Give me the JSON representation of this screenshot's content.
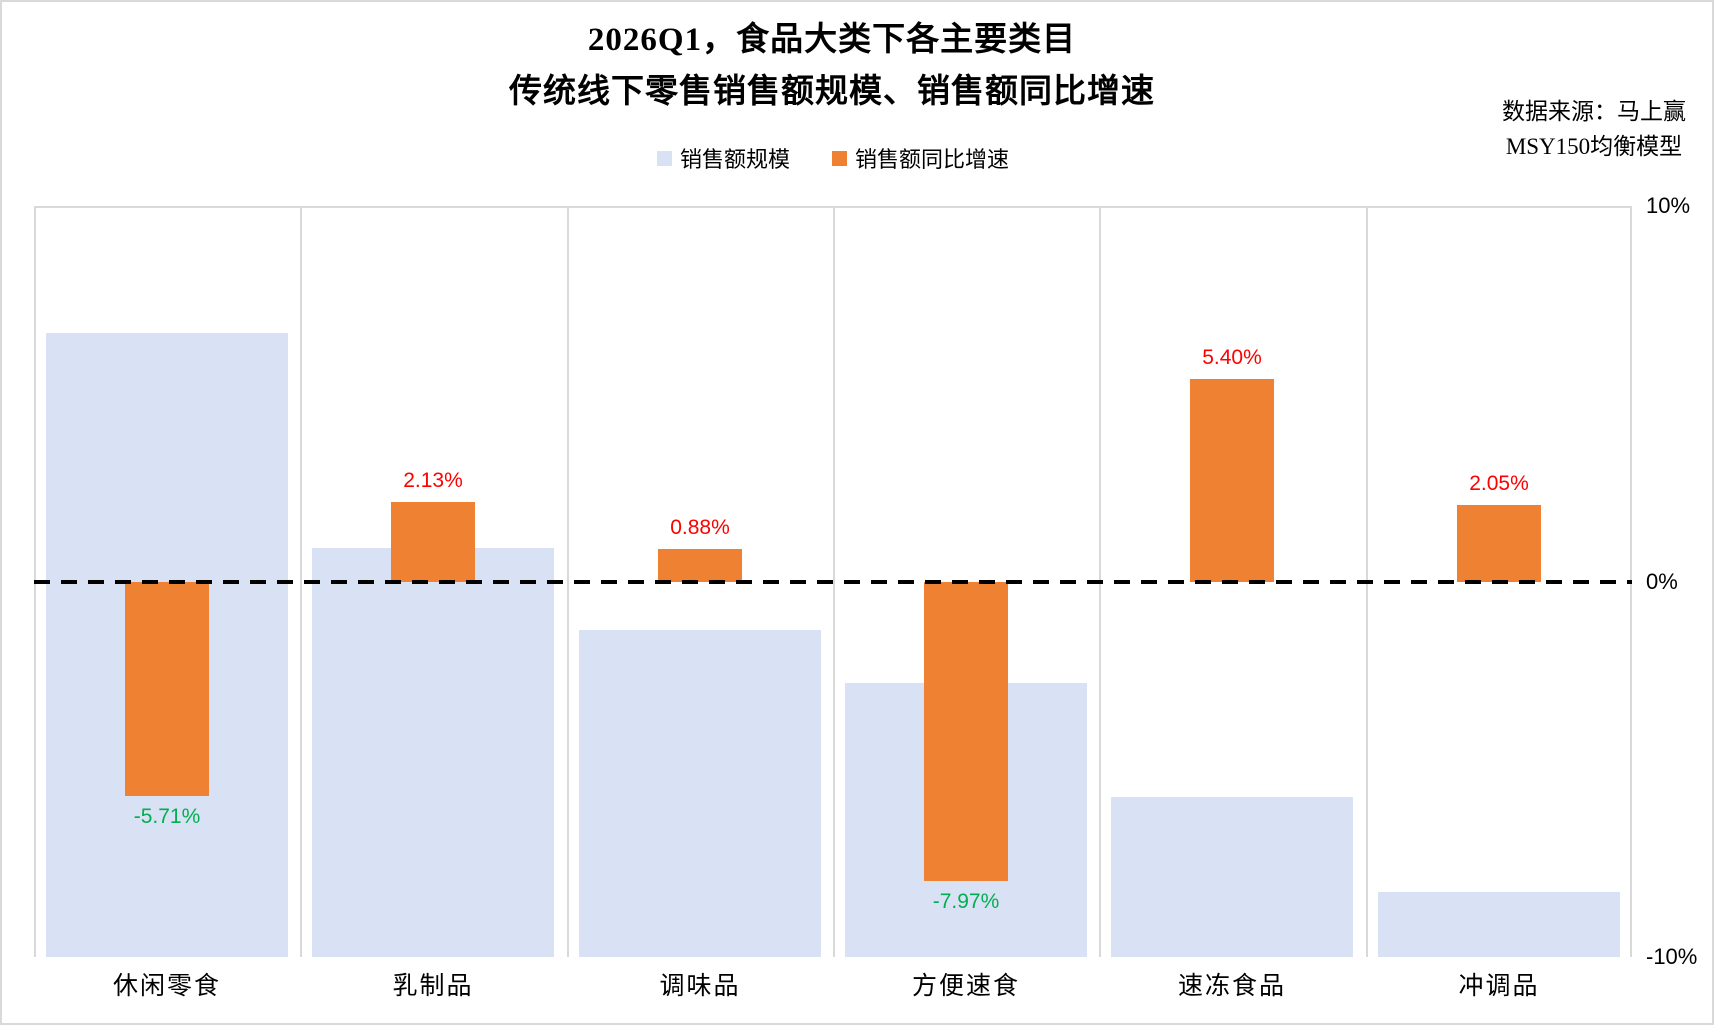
{
  "header": {
    "title_line1": "2026Q1，食品大类下各主要类目",
    "title_line2": "传统线下零售销售额规模、销售额同比增速",
    "source_line1": "数据来源：马上赢",
    "source_line2": "MSY150均衡模型"
  },
  "legend": {
    "items": [
      {
        "label": "销售额规模",
        "color": "#D9E1F4"
      },
      {
        "label": "销售额同比增速",
        "color": "#EE8132"
      }
    ]
  },
  "axis_right": {
    "ticks": [
      {
        "label": "10%",
        "value": 10
      },
      {
        "label": "0%",
        "value": 0
      },
      {
        "label": "-10%",
        "value": -10
      }
    ]
  },
  "chart_data": {
    "type": "bar",
    "title": "2026Q1，食品大类下各主要类目 传统线下零售销售额规模、销售额同比增速",
    "categories": [
      "休闲零食",
      "乳制品",
      "调味品",
      "方便速食",
      "速冻食品",
      "冲调品"
    ],
    "series": [
      {
        "name": "销售额规模",
        "type": "bar",
        "color": "#D9E1F4",
        "axis": "hidden (no tick labels shown)",
        "unit": "relative height, % of plot height (scale axis not labeled in chart)",
        "values": [
          83.1,
          54.5,
          43.5,
          36.5,
          21.3,
          8.7
        ]
      },
      {
        "name": "销售额同比增速",
        "type": "bar",
        "color": "#EE8132",
        "axis": "right",
        "unit": "%",
        "values": [
          -5.71,
          2.13,
          0.88,
          -7.97,
          5.4,
          2.05
        ],
        "labels": [
          "-5.71%",
          "2.13%",
          "0.88%",
          "-7.97%",
          "5.40%",
          "2.05%"
        ]
      }
    ],
    "y2lim": [
      -10,
      10
    ],
    "y2_ticks": [
      "10%",
      "0%",
      "-10%"
    ],
    "zero_line": {
      "style": "dashed",
      "color": "#000000"
    },
    "label_colors": {
      "positive": "#FF0000",
      "negative": "#00B050"
    },
    "grid": "vertical column separators only, color #D9D9D9",
    "legend_position": "top-center"
  }
}
